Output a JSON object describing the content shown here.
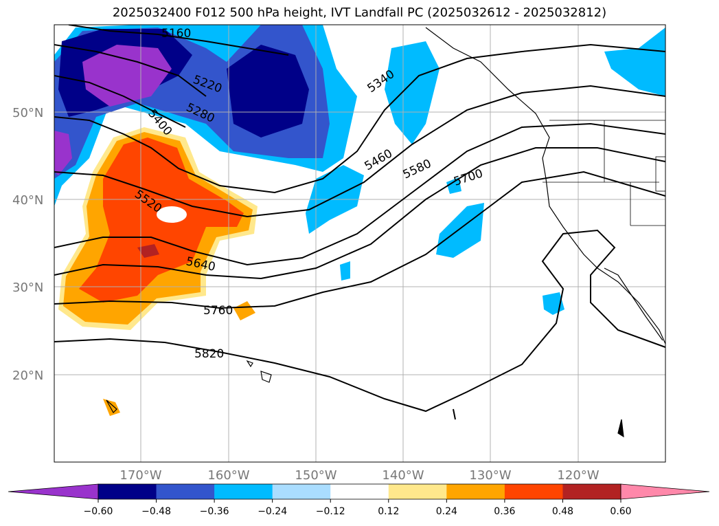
{
  "title": "2025032400 F012 500 hPa height, IVT Landfall PC (2025032612 - 2025032812)",
  "map": {
    "lon_range": [
      -180,
      -110
    ],
    "lat_range": [
      10,
      60
    ],
    "lat_ticks": [
      {
        "value": 50,
        "label": "50°N"
      },
      {
        "value": 40,
        "label": "40°N"
      },
      {
        "value": 30,
        "label": "30°N"
      },
      {
        "value": 20,
        "label": "20°N"
      }
    ],
    "lon_ticks": [
      {
        "value": -170,
        "label": "170°W"
      },
      {
        "value": -160,
        "label": "160°W"
      },
      {
        "value": -150,
        "label": "150°W"
      },
      {
        "value": -140,
        "label": "140°W"
      },
      {
        "value": -130,
        "label": "130°W"
      },
      {
        "value": -120,
        "label": "120°W"
      }
    ],
    "grid": true,
    "height_contours": [
      "5160",
      "5220",
      "5280",
      "5340",
      "5400",
      "5460",
      "5520",
      "5580",
      "5640",
      "5700",
      "5760",
      "5820"
    ],
    "colors": {
      "purple": "#9933cc",
      "navy": "#000088",
      "blue": "#3355cc",
      "cyan": "#00bbff",
      "light_cyan": "#aaddff",
      "white": "#ffffff",
      "yellow": "#ffe88c",
      "orange": "#ffa500",
      "red_orange": "#ff4500",
      "dark_red": "#b22222",
      "pink": "#ff88aa"
    }
  },
  "colorbar": {
    "ticks": [
      "−0.60",
      "−0.48",
      "−0.36",
      "−0.24",
      "−0.12",
      "0.12",
      "0.24",
      "0.36",
      "0.48",
      "0.60"
    ],
    "colors": [
      "#9933cc",
      "#000088",
      "#3355cc",
      "#00bbff",
      "#aaddff",
      "#ffffff",
      "#ffe88c",
      "#ffa500",
      "#ff4500",
      "#b22222",
      "#ff88aa"
    ]
  }
}
